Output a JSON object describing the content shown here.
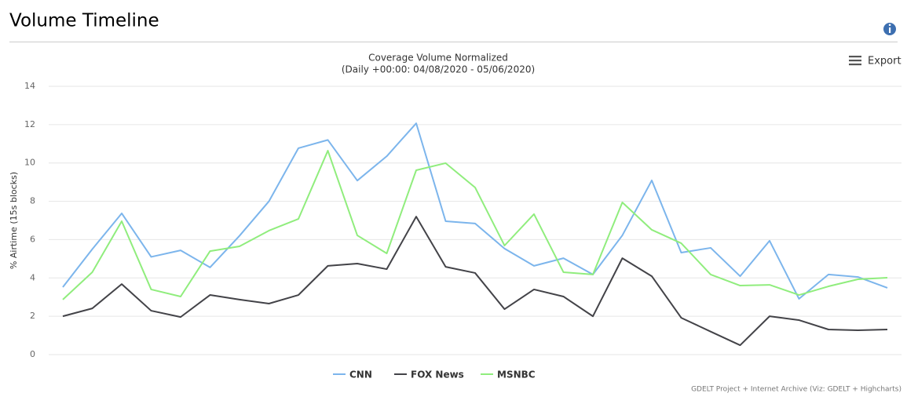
{
  "header": {
    "title": "Volume Timeline",
    "export": "Export"
  },
  "chart_data": {
    "type": "line",
    "title": "Coverage Volume Normalized",
    "subtitle": "(Daily +00:00: 04/08/2020 - 05/06/2020)",
    "y_label": "% Airtime (15s blocks)",
    "credits": "GDELT Project + Internet Archive (Viz: GDELT + Highcharts)",
    "categories": [
      null,
      null,
      null,
      null,
      null,
      null,
      null,
      null,
      null,
      null,
      null,
      null,
      null,
      null,
      null,
      null,
      null,
      null,
      null,
      null,
      null,
      null,
      null,
      null,
      null,
      null,
      null,
      null,
      null
    ],
    "ylim": [
      0,
      14
    ],
    "yticks": [
      0,
      2,
      4,
      6,
      8,
      10,
      12,
      14
    ],
    "grid": true,
    "legend": "bottom",
    "series": [
      {
        "name": "CNN",
        "color": "#7cb5ec",
        "values": [
          3.52,
          5.5,
          7.37,
          5.1,
          5.44,
          4.55,
          6.2,
          8.0,
          10.77,
          11.2,
          9.08,
          10.35,
          12.07,
          6.96,
          6.84,
          5.53,
          4.63,
          5.03,
          4.18,
          6.22,
          9.09,
          5.32,
          5.57,
          4.09,
          5.94,
          2.91,
          4.18,
          4.05,
          3.48
        ]
      },
      {
        "name": "FOX News",
        "color": "#434348",
        "values": [
          2.0,
          2.41,
          3.68,
          2.29,
          1.96,
          3.11,
          2.87,
          2.66,
          3.11,
          4.63,
          4.75,
          4.46,
          7.2,
          4.58,
          4.26,
          2.37,
          3.4,
          3.03,
          2.0,
          5.03,
          4.09,
          1.92,
          1.2,
          0.49,
          2.0,
          1.8,
          1.31,
          1.27,
          1.31
        ]
      },
      {
        "name": "MSNBC",
        "color": "#90ed7d",
        "values": [
          2.87,
          4.3,
          6.96,
          3.4,
          3.03,
          5.4,
          5.65,
          6.47,
          7.08,
          10.64,
          6.22,
          5.28,
          9.62,
          9.99,
          8.72,
          5.69,
          7.33,
          4.3,
          4.18,
          7.94,
          6.51,
          5.81,
          4.18,
          3.6,
          3.64,
          3.11,
          3.56,
          3.93,
          4.01
        ]
      }
    ]
  }
}
